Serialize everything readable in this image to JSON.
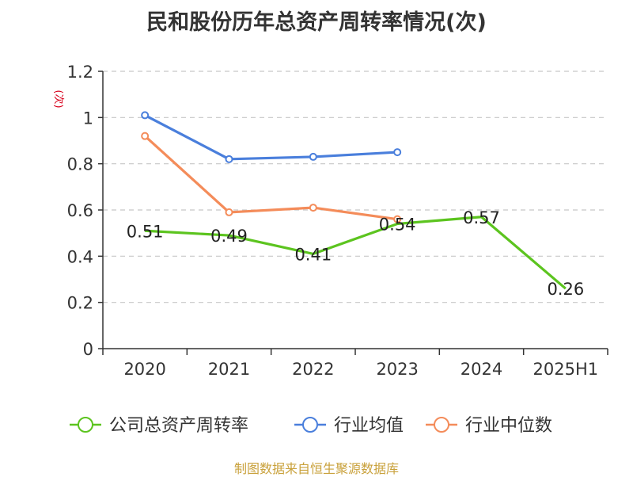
{
  "chart_data": {
    "type": "line",
    "title": "民和股份历年总资产周转率情况(次)",
    "ylabel": "(次)",
    "xlabel": "",
    "categories": [
      "2020",
      "2021",
      "2022",
      "2023",
      "2024",
      "2025H1"
    ],
    "y_ticks": [
      "0",
      "0.2",
      "0.4",
      "0.6",
      "0.8",
      "1",
      "1.2"
    ],
    "ylim": [
      0,
      1.2
    ],
    "grid": "horizontal dashed",
    "legend_position": "bottom",
    "series": [
      {
        "name": "公司总资产周转率",
        "color": "#5cc41f",
        "values": [
          0.51,
          0.49,
          0.41,
          0.54,
          0.57,
          0.26
        ],
        "data_labels": [
          "0.51",
          "0.49",
          "0.41",
          "0.54",
          "0.57",
          "0.26"
        ],
        "markers": false
      },
      {
        "name": "行业均值",
        "color": "#4a7fdc",
        "values": [
          1.01,
          0.82,
          0.83,
          0.85,
          null,
          null
        ],
        "markers": true
      },
      {
        "name": "行业中位数",
        "color": "#f48c5a",
        "values": [
          0.92,
          0.59,
          0.61,
          0.56,
          null,
          null
        ],
        "markers": true
      }
    ]
  },
  "footer": {
    "source": "制图数据来自恒生聚源数据库"
  }
}
